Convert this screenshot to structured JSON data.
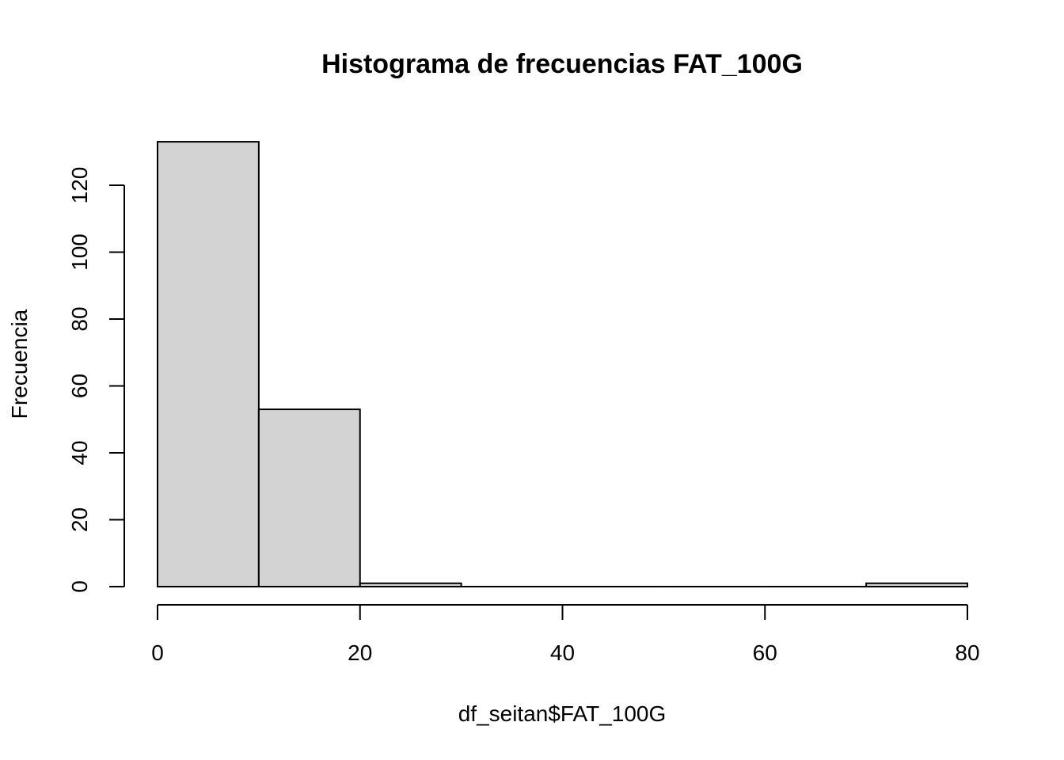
{
  "chart_data": {
    "type": "bar",
    "title": "Histograma de frecuencias FAT_100G",
    "xlabel": "df_seitan$FAT_100G",
    "ylabel": "Frecuencia",
    "bins": [
      {
        "x0": 0,
        "x1": 10,
        "count": 133
      },
      {
        "x0": 10,
        "x1": 20,
        "count": 53
      },
      {
        "x0": 20,
        "x1": 30,
        "count": 1
      },
      {
        "x0": 30,
        "x1": 40,
        "count": 0
      },
      {
        "x0": 40,
        "x1": 50,
        "count": 0
      },
      {
        "x0": 50,
        "x1": 60,
        "count": 0
      },
      {
        "x0": 60,
        "x1": 70,
        "count": 0
      },
      {
        "x0": 70,
        "x1": 80,
        "count": 1
      }
    ],
    "xlim": [
      0,
      80
    ],
    "ylim": [
      0,
      133
    ],
    "x_ticks": [
      0,
      20,
      40,
      60,
      80
    ],
    "y_ticks": [
      0,
      20,
      40,
      60,
      80,
      100,
      120
    ],
    "grid": false,
    "legend": "none",
    "colors": {
      "bar_fill": "#d3d3d3",
      "bar_stroke": "#000000",
      "background": "#ffffff"
    }
  }
}
